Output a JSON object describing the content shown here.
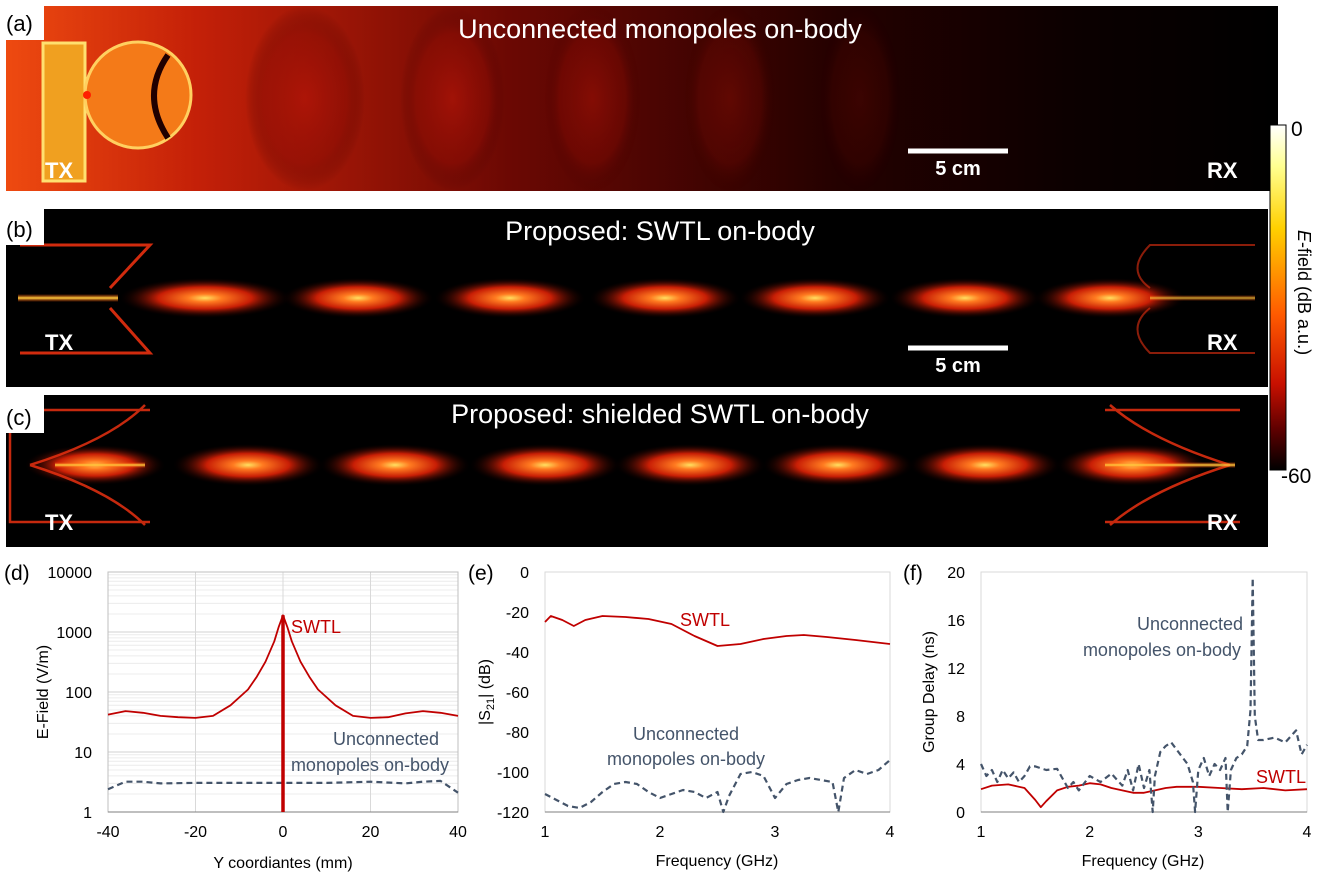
{
  "panels": {
    "a": {
      "label": "(a)",
      "title": "Unconnected monopoles on-body",
      "tx": "TX",
      "rx": "RX",
      "scale": "5 cm"
    },
    "b": {
      "label": "(b)",
      "title": "Proposed: SWTL on-body",
      "tx": "TX",
      "rx": "RX",
      "scale": "5 cm"
    },
    "c": {
      "label": "(c)",
      "title": "Proposed: shielded SWTL on-body",
      "tx": "TX",
      "rx": "RX"
    }
  },
  "colorbar": {
    "max_label": "0",
    "min_label": "-60",
    "title_italic": "E",
    "title_rest": "-field (dB a.u.)"
  },
  "colors": {
    "swtl": "#c00000",
    "unconnected": "#44546a",
    "field_hot": "#ffffc0",
    "field_mid": "#e53010",
    "field_cold": "#000000"
  },
  "chart_data": [
    {
      "id": "d",
      "panel_label": "(d)",
      "type": "line",
      "xlabel": "Y coordiantes (mm)",
      "ylabel": "E-Field (V/m)",
      "xlim": [
        -40,
        40
      ],
      "ylim": [
        1,
        10000
      ],
      "yscale": "log",
      "xticks": [
        "-40",
        "-20",
        "0",
        "20",
        "40"
      ],
      "yticks": [
        "1",
        "10",
        "100",
        "1000",
        "10000"
      ],
      "grid": true,
      "series": [
        {
          "name": "SWTL",
          "style": "solid",
          "color": "#c00000",
          "x": [
            -40,
            -36,
            -32,
            -28,
            -24,
            -20,
            -16,
            -12,
            -8,
            -6,
            -4,
            -2,
            -1,
            0,
            1,
            2,
            4,
            6,
            8,
            12,
            16,
            20,
            24,
            28,
            32,
            36,
            40
          ],
          "y": [
            42,
            48,
            45,
            40,
            38,
            37,
            40,
            60,
            110,
            180,
            320,
            700,
            1200,
            1900,
            1200,
            700,
            320,
            180,
            110,
            60,
            40,
            37,
            38,
            44,
            48,
            45,
            40
          ]
        },
        {
          "name": "Unconnected monopoles on-body",
          "style": "dashed",
          "color": "#44546a",
          "x": [
            -40,
            -36,
            -32,
            -28,
            -20,
            -10,
            0,
            10,
            20,
            28,
            32,
            36,
            40
          ],
          "y": [
            2.4,
            3.2,
            3.2,
            3.0,
            3.05,
            3.05,
            3.05,
            3.05,
            3.2,
            3.0,
            3.2,
            3.3,
            2.1
          ]
        }
      ],
      "annotations": [
        {
          "text": "SWTL"
        },
        {
          "text": "Unconnected"
        },
        {
          "text": "monopoles on-body"
        }
      ]
    },
    {
      "id": "e",
      "panel_label": "(e)",
      "type": "line",
      "xlabel": "Frequency (GHz)",
      "ylabel_main": "|S",
      "ylabel_sub": "21",
      "ylabel_end": "| (dB)",
      "xlim": [
        1,
        4
      ],
      "ylim": [
        -120,
        0
      ],
      "xticks": [
        "1",
        "2",
        "3",
        "4"
      ],
      "yticks": [
        "-120",
        "-100",
        "-80",
        "-60",
        "-40",
        "-20",
        "0"
      ],
      "grid": false,
      "series": [
        {
          "name": "SWTL",
          "style": "solid",
          "color": "#c00000",
          "x": [
            1.0,
            1.05,
            1.15,
            1.25,
            1.35,
            1.5,
            1.7,
            1.9,
            2.1,
            2.3,
            2.5,
            2.7,
            2.9,
            3.1,
            3.25,
            3.45,
            3.7,
            4.0
          ],
          "y": [
            -25,
            -22,
            -24,
            -27,
            -24,
            -22,
            -22.5,
            -23.5,
            -26,
            -32,
            -37,
            -36,
            -33.5,
            -32,
            -31.5,
            -32.5,
            -34,
            -36
          ]
        },
        {
          "name": "Unconnected monopoles on-body",
          "style": "dashed",
          "color": "#44546a",
          "x": [
            1.0,
            1.1,
            1.2,
            1.3,
            1.4,
            1.5,
            1.6,
            1.7,
            1.8,
            1.9,
            2.0,
            2.1,
            2.2,
            2.3,
            2.4,
            2.5,
            2.55,
            2.6,
            2.7,
            2.8,
            2.9,
            3.0,
            3.1,
            3.2,
            3.3,
            3.4,
            3.5,
            3.55,
            3.6,
            3.7,
            3.8,
            3.9,
            4.0
          ],
          "y": [
            -111,
            -114,
            -117,
            -118,
            -115,
            -110,
            -106,
            -105,
            -106,
            -110,
            -113,
            -111,
            -109,
            -110,
            -113,
            -110,
            -120,
            -112,
            -101,
            -100,
            -102,
            -113,
            -106,
            -104,
            -103,
            -104,
            -105,
            -120,
            -103,
            -99,
            -101,
            -99,
            -94
          ]
        }
      ],
      "annotations": [
        {
          "text": "SWTL"
        },
        {
          "text": "Unconnected"
        },
        {
          "text": "monopoles on-body"
        }
      ]
    },
    {
      "id": "f",
      "panel_label": "(f)",
      "type": "line",
      "xlabel": "Frequency (GHz)",
      "ylabel": "Group Delay (ns)",
      "xlim": [
        1,
        4
      ],
      "ylim": [
        0,
        20
      ],
      "xticks": [
        "1",
        "2",
        "3",
        "4"
      ],
      "yticks": [
        "0",
        "4",
        "8",
        "12",
        "16",
        "20"
      ],
      "grid": false,
      "series": [
        {
          "name": "SWTL",
          "style": "solid",
          "color": "#c00000",
          "x": [
            1.0,
            1.1,
            1.25,
            1.4,
            1.5,
            1.55,
            1.6,
            1.7,
            1.8,
            1.9,
            2.0,
            2.1,
            2.2,
            2.3,
            2.4,
            2.5,
            2.6,
            2.7,
            2.8,
            2.9,
            3.0,
            3.2,
            3.4,
            3.6,
            3.8,
            4.0
          ],
          "y": [
            1.9,
            2.2,
            2.3,
            2.0,
            1.0,
            0.4,
            0.9,
            1.8,
            2.1,
            2.2,
            2.4,
            2.3,
            2.0,
            1.8,
            1.6,
            1.6,
            1.8,
            2.0,
            2.1,
            2.1,
            2.1,
            2.0,
            1.9,
            2.0,
            1.8,
            1.9
          ]
        },
        {
          "name": "Unconnected monopoles on-body",
          "style": "dashed",
          "color": "#44546a",
          "x": [
            1.0,
            1.05,
            1.1,
            1.15,
            1.2,
            1.25,
            1.3,
            1.35,
            1.4,
            1.45,
            1.5,
            1.6,
            1.7,
            1.8,
            1.85,
            1.9,
            2.0,
            2.1,
            2.2,
            2.3,
            2.35,
            2.4,
            2.45,
            2.5,
            2.55,
            2.58,
            2.6,
            2.65,
            2.7,
            2.75,
            2.8,
            2.9,
            2.95,
            2.97,
            3.0,
            3.05,
            3.1,
            3.15,
            3.2,
            3.25,
            3.27,
            3.3,
            3.35,
            3.4,
            3.45,
            3.48,
            3.5,
            3.52,
            3.55,
            3.6,
            3.7,
            3.8,
            3.85,
            3.9,
            3.95,
            4.0
          ],
          "y": [
            4.0,
            3.0,
            3.5,
            2.5,
            3.5,
            2.8,
            3.3,
            2.5,
            3.0,
            3.8,
            3.8,
            3.5,
            3.6,
            2.0,
            2.5,
            1.8,
            3.0,
            2.5,
            3.2,
            2.2,
            3.5,
            1.8,
            4.0,
            2.0,
            3.5,
            0.0,
            3.0,
            5.0,
            5.5,
            5.8,
            5.2,
            4.0,
            2.5,
            0.0,
            3.5,
            4.5,
            3.0,
            4.0,
            3.5,
            4.5,
            0.0,
            3.5,
            4.5,
            4.8,
            5.5,
            8.5,
            19.5,
            8.0,
            6.0,
            6.0,
            6.2,
            5.8,
            6.3,
            6.8,
            4.8,
            5.6
          ]
        }
      ],
      "annotations": [
        {
          "text": "Unconnected"
        },
        {
          "text": "monopoles on-body"
        },
        {
          "text": "SWTL"
        }
      ]
    }
  ]
}
